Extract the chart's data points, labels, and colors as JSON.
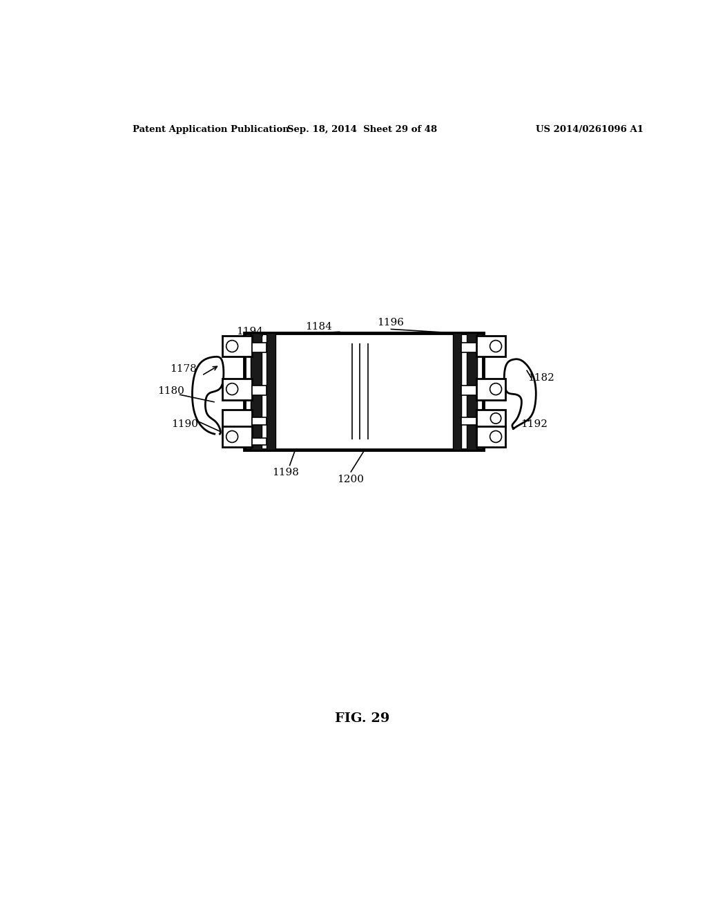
{
  "header_left": "Patent Application Publication",
  "header_mid": "Sep. 18, 2014  Sheet 29 of 48",
  "header_right": "US 2014/0261096 A1",
  "figure_label": "FIG. 29",
  "bg_color": "#ffffff"
}
